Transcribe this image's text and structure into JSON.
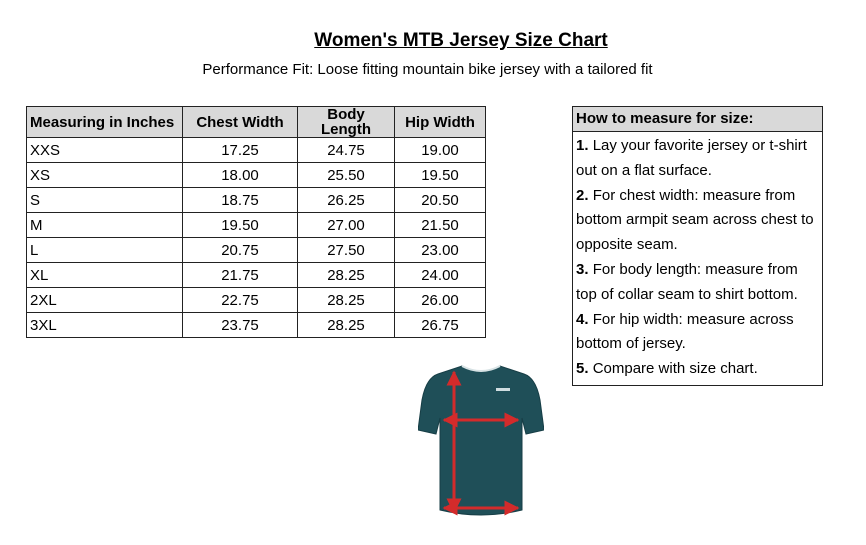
{
  "title": "Women's MTB Jersey Size Chart",
  "subtitle": "Performance Fit: Loose fitting mountain bike jersey with a tailored fit",
  "size_table": {
    "headers": [
      "Measuring in Inches",
      "Chest Width",
      "Body Length",
      "Hip Width"
    ],
    "rows": [
      [
        "XXS",
        "17.25",
        "24.75",
        "19.00"
      ],
      [
        "XS",
        "18.00",
        "25.50",
        "19.50"
      ],
      [
        "S",
        "18.75",
        "26.25",
        "20.50"
      ],
      [
        "M",
        "19.50",
        "27.00",
        "21.50"
      ],
      [
        "L",
        "20.75",
        "27.50",
        "23.00"
      ],
      [
        "XL",
        "21.75",
        "28.25",
        "24.00"
      ],
      [
        "2XL",
        "22.75",
        "28.25",
        "26.00"
      ],
      [
        "3XL",
        "23.75",
        "28.25",
        "26.75"
      ]
    ]
  },
  "measure": {
    "heading": "How to measure for size:",
    "steps": [
      {
        "num": "1.",
        "text": "Lay your favorite jersey or t-shirt out on a flat surface."
      },
      {
        "num": "2.",
        "text": "For chest width: measure from bottom armpit seam across chest to opposite seam."
      },
      {
        "num": "3.",
        "text": "For body length: measure from top of collar seam to shirt bottom."
      },
      {
        "num": "4.",
        "text": "For hip width: measure across bottom of jersey."
      },
      {
        "num": "5.",
        "text": "Compare with size chart."
      }
    ]
  },
  "colors": {
    "header_fill": "#d9d9d9",
    "jersey": "#1f4f58",
    "arrows": "#d32b2b"
  }
}
